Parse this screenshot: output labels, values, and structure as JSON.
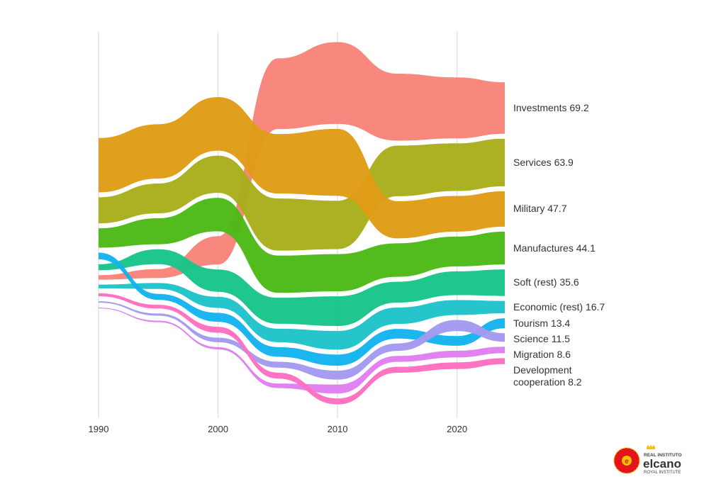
{
  "chart_data": {
    "type": "area",
    "subtype": "ranked stream (bump area) chart",
    "xlim": [
      1990,
      2024
    ],
    "x_ticks": [
      "1990",
      "2000",
      "2010",
      "2020"
    ],
    "grid": "vertical",
    "x": [
      1990,
      1995,
      2000,
      2005,
      2010,
      2015,
      2020,
      2024
    ],
    "series": [
      {
        "name": "Investments",
        "final_label": "69.2",
        "color": "#f8837a",
        "values": [
          6,
          12,
          38,
          95,
          110,
          90,
          82,
          69.2
        ]
      },
      {
        "name": "Services",
        "final_label": "63.9",
        "color": "#a9ad1c",
        "values": [
          35,
          40,
          50,
          70,
          65,
          68,
          64,
          63.9
        ]
      },
      {
        "name": "Military",
        "final_label": "47.7",
        "color": "#e09c17",
        "values": [
          73,
          73,
          72,
          80,
          90,
          50,
          48,
          47.7
        ]
      },
      {
        "name": "Manufactures",
        "final_label": "44.1",
        "color": "#4cba17",
        "values": [
          26,
          35,
          45,
          50,
          50,
          45,
          40,
          44.1
        ]
      },
      {
        "name": "Soft (rest)",
        "final_label": "35.6",
        "color": "#18c58a",
        "values": [
          8,
          20,
          30,
          35,
          40,
          28,
          32,
          35.6
        ]
      },
      {
        "name": "Economic (rest)",
        "final_label": "16.7",
        "color": "#1ec3c9",
        "values": [
          5,
          8,
          15,
          18,
          25,
          22,
          20,
          16.7
        ]
      },
      {
        "name": "Tourism",
        "final_label": "13.4",
        "color": "#14b3ee",
        "values": [
          9,
          8,
          12,
          13,
          15,
          13,
          13,
          13.4
        ]
      },
      {
        "name": "Science",
        "final_label": "11.5",
        "color": "#a39af0",
        "values": [
          2,
          3,
          6,
          8,
          12,
          10,
          15,
          11.5
        ]
      },
      {
        "name": "Migration",
        "final_label": "8.6",
        "color": "#df7ff0",
        "values": [
          1,
          2,
          3,
          6,
          12,
          8,
          9,
          8.6
        ]
      },
      {
        "name": "Development cooperation",
        "final_label": "8.2",
        "color": "#ff6fc0",
        "values": [
          4,
          5,
          8,
          8,
          8,
          8,
          9,
          8.2
        ]
      }
    ]
  },
  "logo": {
    "line1": "REAL INSTITUTO",
    "line2": "elcano",
    "line3": "ROYAL INSTITUTE"
  }
}
